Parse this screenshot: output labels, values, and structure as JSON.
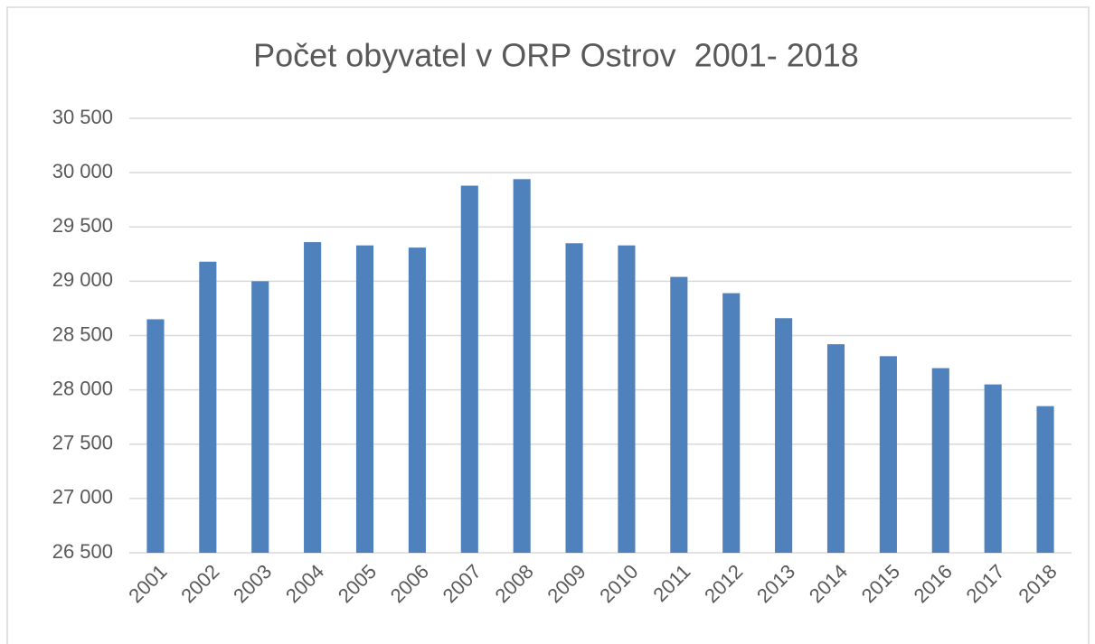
{
  "chart_data": {
    "type": "bar",
    "title": "Počet obyvatel v ORP Ostrov  2001- 2018",
    "categories": [
      "2001",
      "2002",
      "2003",
      "2004",
      "2005",
      "2006",
      "2007",
      "2008",
      "2009",
      "2010",
      "2011",
      "2012",
      "2013",
      "2014",
      "2015",
      "2016",
      "2017",
      "2018"
    ],
    "values": [
      28650,
      29180,
      29000,
      29360,
      29330,
      29310,
      29880,
      29940,
      29350,
      29330,
      29040,
      28890,
      28660,
      28420,
      28310,
      28200,
      28050,
      27850
    ],
    "color": "#4f81bd",
    "ylim": [
      26500,
      30500
    ],
    "yticks": [
      {
        "value": 26500,
        "label": "26 500"
      },
      {
        "value": 27000,
        "label": "27 000"
      },
      {
        "value": 27500,
        "label": "27 500"
      },
      {
        "value": 28000,
        "label": "28 000"
      },
      {
        "value": 28500,
        "label": "28 500"
      },
      {
        "value": 29000,
        "label": "29 000"
      },
      {
        "value": 29500,
        "label": "29 500"
      },
      {
        "value": 30000,
        "label": "30 000"
      },
      {
        "value": 30500,
        "label": "30 500"
      }
    ],
    "grid": true
  }
}
